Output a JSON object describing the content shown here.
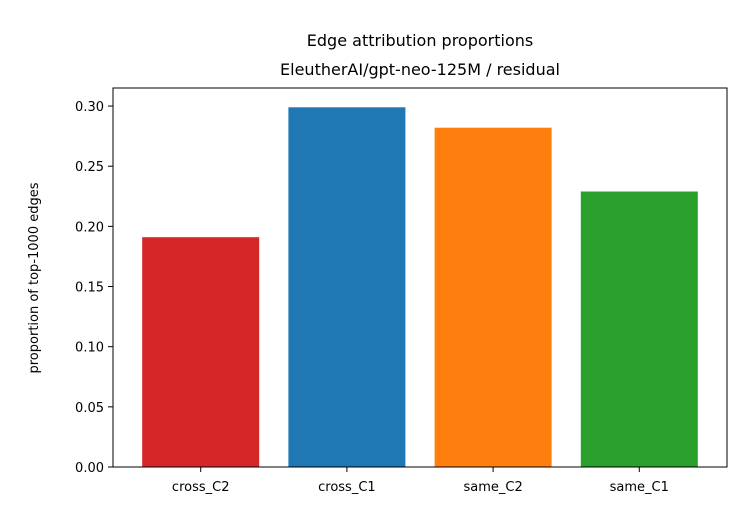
{
  "chart_data": {
    "type": "bar",
    "title": "Edge attribution proportions",
    "subtitle": "EleutherAI/gpt-neo-125M / residual",
    "xlabel": "",
    "ylabel": "proportion of top-1000 edges",
    "ylim": [
      0,
      0.315
    ],
    "yticks": [
      "0.00",
      "0.05",
      "0.10",
      "0.15",
      "0.20",
      "0.25",
      "0.30"
    ],
    "categories": [
      "cross_C2",
      "cross_C1",
      "same_C2",
      "same_C1"
    ],
    "values": [
      0.191,
      0.299,
      0.282,
      0.229
    ],
    "colors": [
      "#d62728",
      "#1f77b4",
      "#ff7f0e",
      "#2ca02c"
    ],
    "grid": false,
    "legend": "none"
  }
}
